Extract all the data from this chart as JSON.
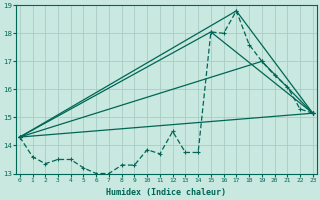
{
  "xlabel": "Humidex (Indice chaleur)",
  "x_ticks": [
    0,
    1,
    2,
    3,
    4,
    5,
    6,
    7,
    8,
    9,
    10,
    11,
    12,
    13,
    14,
    15,
    16,
    17,
    18,
    19,
    20,
    21,
    22,
    23
  ],
  "ylim": [
    13,
    19
  ],
  "yticks": [
    13,
    14,
    15,
    16,
    17,
    18,
    19
  ],
  "xlim": [
    -0.3,
    23.3
  ],
  "bg_color": "#c8e8e0",
  "grid_color": "#a8ccc4",
  "line_color": "#006655",
  "line1_x": [
    0,
    1,
    2,
    3,
    4,
    5,
    6,
    7,
    8,
    9,
    10,
    11,
    12,
    13,
    14,
    15,
    16,
    17,
    18,
    19,
    20,
    21,
    22,
    23
  ],
  "line1_y": [
    14.3,
    13.6,
    13.35,
    13.5,
    13.5,
    13.2,
    13.0,
    13.0,
    13.3,
    13.3,
    13.85,
    13.7,
    14.5,
    13.75,
    13.75,
    18.05,
    18.0,
    18.8,
    17.6,
    17.0,
    16.5,
    16.1,
    15.3,
    15.15
  ],
  "line2_x": [
    0,
    23
  ],
  "line2_y": [
    14.3,
    15.15
  ],
  "line3_x": [
    0,
    17,
    23
  ],
  "line3_y": [
    14.3,
    18.8,
    15.15
  ],
  "line4_x": [
    0,
    15,
    23
  ],
  "line4_y": [
    14.3,
    18.05,
    15.15
  ],
  "line5_x": [
    0,
    19,
    23
  ],
  "line5_y": [
    14.3,
    17.0,
    15.15
  ]
}
